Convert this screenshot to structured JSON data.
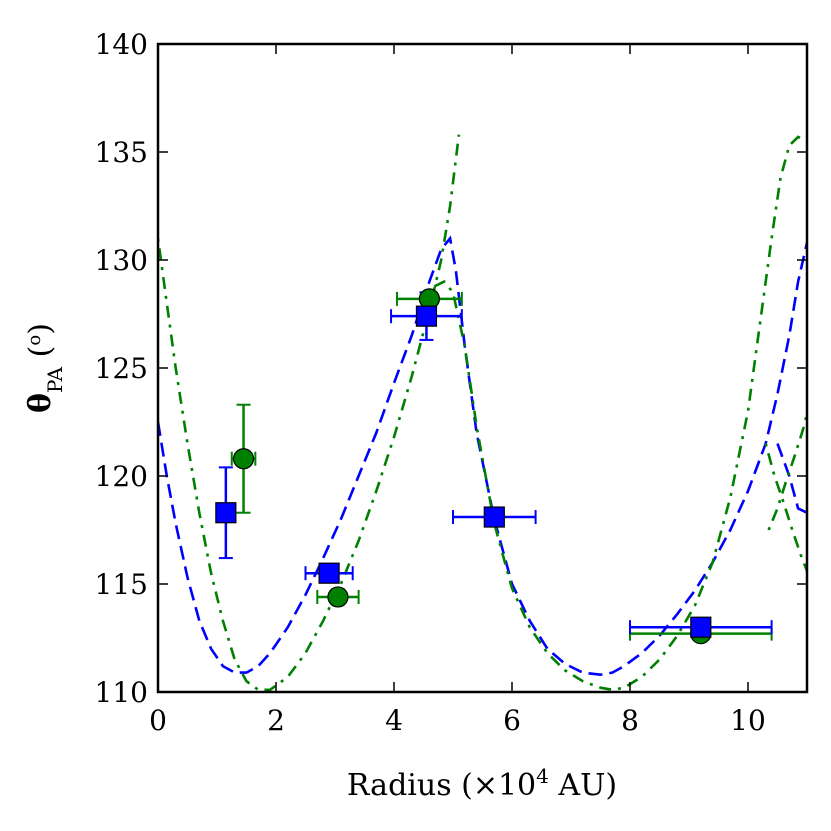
{
  "chart_data": {
    "type": "scatter",
    "title": "",
    "xlabel": "Radius (×10⁴ AU)",
    "xlabel_parts": {
      "prefix": "Radius (×10",
      "sup": "4",
      "suffix": " AU)"
    },
    "ylabel": "θPA (°)",
    "ylabel_parts": {
      "main": "θ",
      "sub": "PA",
      "rest": " (",
      "sup": "o",
      "close": ")"
    },
    "xlim": [
      0,
      11
    ],
    "ylim": [
      110,
      140
    ],
    "xticks": [
      0,
      2,
      4,
      6,
      8,
      10
    ],
    "yticks": [
      110,
      115,
      120,
      125,
      130,
      135,
      140
    ],
    "grid": false,
    "colors": {
      "blue": "#0000ff",
      "green": "#008000",
      "axis": "#000000"
    },
    "series": [
      {
        "name": "green-points",
        "marker": "circle",
        "color": "#008000",
        "x": [
          1.45,
          3.05,
          4.6,
          9.2
        ],
        "y": [
          120.8,
          114.4,
          128.2,
          112.7
        ],
        "xerr": [
          0.2,
          0.35,
          0.55,
          1.2
        ],
        "yerr": [
          2.5,
          0.35,
          0.3,
          0.2
        ]
      },
      {
        "name": "blue-points",
        "marker": "square",
        "color": "#0000ff",
        "x": [
          1.15,
          2.9,
          4.55,
          5.7,
          9.2
        ],
        "y": [
          118.3,
          115.5,
          127.4,
          118.1,
          113.0
        ],
        "xerr": [
          0.0,
          0.4,
          0.6,
          0.7,
          1.2
        ],
        "yerr": [
          2.1,
          0.35,
          1.1,
          0.2,
          0.2
        ]
      },
      {
        "name": "blue-dashed-model",
        "style": "dashed",
        "color": "#0000ff",
        "segments": [
          {
            "x": [
              0.0,
              0.15,
              0.3,
              0.5,
              0.7,
              0.9,
              1.1,
              1.3,
              1.5,
              1.7,
              1.9,
              2.2,
              2.5,
              2.8,
              3.1,
              3.4,
              3.7,
              4.0,
              4.3,
              4.6,
              4.8,
              4.95,
              5.05,
              5.2,
              5.4,
              5.7,
              6.0,
              6.3,
              6.6,
              6.9,
              7.2,
              7.5,
              7.7,
              7.9,
              8.2,
              8.5,
              8.8,
              9.1,
              9.4,
              9.7,
              10.0,
              10.3,
              10.5,
              10.7,
              10.85,
              11.0
            ],
            "y": [
              122.5,
              120.0,
              117.8,
              115.3,
              113.3,
              112.0,
              111.2,
              110.9,
              110.9,
              111.2,
              111.8,
              113.0,
              114.5,
              116.2,
              118.0,
              120.0,
              122.0,
              124.3,
              126.5,
              129.0,
              130.5,
              131.0,
              129.5,
              126.0,
              122.0,
              118.0,
              115.0,
              113.3,
              112.0,
              111.3,
              110.9,
              110.8,
              110.9,
              111.2,
              111.8,
              112.6,
              113.6,
              114.7,
              116.0,
              117.5,
              119.3,
              121.5,
              123.8,
              126.5,
              129.0,
              130.8
            ]
          },
          {
            "x": [
              10.5,
              10.7,
              10.85,
              11.0
            ],
            "y": [
              121.5,
              120.0,
              118.5,
              118.3
            ]
          }
        ]
      },
      {
        "name": "green-dashdot-model",
        "style": "dashdot",
        "color": "#008000",
        "segments": [
          {
            "x": [
              0.0,
              0.15,
              0.3,
              0.5,
              0.7,
              0.9,
              1.1,
              1.3,
              1.5,
              1.7,
              1.9,
              2.2,
              2.5,
              2.8,
              3.1,
              3.4,
              3.7,
              4.0,
              4.3,
              4.6,
              4.8,
              4.95,
              5.1
            ],
            "y": [
              131.0,
              128.0,
              125.0,
              121.5,
              118.3,
              115.5,
              113.3,
              111.5,
              110.5,
              110.1,
              110.1,
              110.7,
              111.8,
              113.3,
              115.0,
              117.0,
              119.3,
              121.8,
              124.6,
              127.7,
              130.0,
              132.5,
              135.8
            ]
          },
          {
            "x": [
              4.55,
              4.7,
              4.85,
              5.0,
              5.2,
              5.4,
              5.7,
              6.0,
              6.3,
              6.6,
              6.9,
              7.2,
              7.5,
              7.7,
              7.9,
              8.2,
              8.5,
              8.8,
              9.1,
              9.4,
              9.7,
              10.0,
              10.2,
              10.4,
              10.55,
              10.7,
              10.85,
              11.0
            ],
            "y": [
              128.5,
              128.8,
              129.0,
              128.5,
              126.0,
              122.3,
              117.8,
              114.8,
              113.0,
              111.8,
              111.0,
              110.5,
              110.2,
              110.1,
              110.2,
              110.7,
              111.5,
              112.6,
              114.0,
              116.0,
              119.0,
              123.0,
              127.0,
              131.0,
              133.8,
              135.3,
              135.7,
              135.5
            ]
          },
          {
            "x": [
              10.3,
              10.45,
              10.6,
              10.75,
              10.9,
              11.0
            ],
            "y": [
              121.5,
              120.0,
              118.8,
              117.5,
              116.3,
              115.6
            ]
          },
          {
            "x": [
              10.35,
              10.5,
              10.65,
              10.8,
              10.95,
              11.0
            ],
            "y": [
              117.5,
              118.5,
              119.8,
              121.0,
              122.3,
              122.9
            ]
          }
        ]
      }
    ]
  }
}
